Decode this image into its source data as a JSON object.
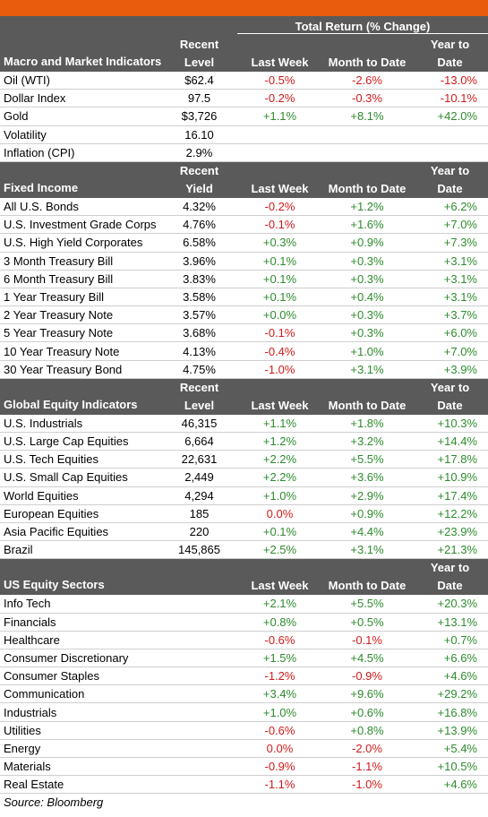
{
  "header": {
    "total_return_label": "Total Return (% Change)"
  },
  "col_labels": {
    "last_week": "Last Week",
    "mtd": "Month to Date",
    "ytd_top": "Year to",
    "ytd_bottom": "Date"
  },
  "sections": [
    {
      "title": "Macro and Market Indicators",
      "level_top": "Recent",
      "level_bottom": "Level",
      "rows": [
        {
          "name": "Oil (WTI)",
          "level": "$62.4",
          "lw": "-0.5%",
          "mtd": "-2.6%",
          "ytd": "-13.0%"
        },
        {
          "name": "Dollar Index",
          "level": "97.5",
          "lw": "-0.2%",
          "mtd": "-0.3%",
          "ytd": "-10.1%"
        },
        {
          "name": "Gold",
          "level": "$3,726",
          "lw": "+1.1%",
          "mtd": "+8.1%",
          "ytd": "+42.0%"
        },
        {
          "name": "Volatility",
          "level": "16.10",
          "lw": "",
          "mtd": "",
          "ytd": ""
        },
        {
          "name": "Inflation (CPI)",
          "level": "2.9%",
          "lw": "",
          "mtd": "",
          "ytd": ""
        }
      ]
    },
    {
      "title": "Fixed Income",
      "level_top": "Recent",
      "level_bottom": "Yield",
      "rows": [
        {
          "name": "All U.S. Bonds",
          "level": "4.32%",
          "lw": "-0.2%",
          "mtd": "+1.2%",
          "ytd": "+6.2%"
        },
        {
          "name": "U.S. Investment Grade Corps",
          "level": "4.76%",
          "lw": "-0.1%",
          "mtd": "+1.6%",
          "ytd": "+7.0%"
        },
        {
          "name": "U.S. High Yield Corporates",
          "level": "6.58%",
          "lw": "+0.3%",
          "mtd": "+0.9%",
          "ytd": "+7.3%"
        },
        {
          "name": "3 Month Treasury Bill",
          "level": "3.96%",
          "lw": "+0.1%",
          "mtd": "+0.3%",
          "ytd": "+3.1%"
        },
        {
          "name": "6 Month Treasury Bill",
          "level": "3.83%",
          "lw": "+0.1%",
          "mtd": "+0.3%",
          "ytd": "+3.1%"
        },
        {
          "name": "1 Year Treasury Bill",
          "level": "3.58%",
          "lw": "+0.1%",
          "mtd": "+0.4%",
          "ytd": "+3.1%"
        },
        {
          "name": "2 Year Treasury Note",
          "level": "3.57%",
          "lw": "+0.0%",
          "mtd": "+0.3%",
          "ytd": "+3.7%"
        },
        {
          "name": "5 Year Treasury Note",
          "level": "3.68%",
          "lw": "-0.1%",
          "mtd": "+0.3%",
          "ytd": "+6.0%"
        },
        {
          "name": "10 Year Treasury Note",
          "level": "4.13%",
          "lw": "-0.4%",
          "mtd": "+1.0%",
          "ytd": "+7.0%"
        },
        {
          "name": "30 Year Treasury Bond",
          "level": "4.75%",
          "lw": "-1.0%",
          "mtd": "+3.1%",
          "ytd": "+3.9%"
        }
      ]
    },
    {
      "title": "Global Equity Indicators",
      "level_top": "Recent",
      "level_bottom": "Level",
      "rows": [
        {
          "name": "U.S. Industrials",
          "level": "46,315",
          "lw": "+1.1%",
          "mtd": "+1.8%",
          "ytd": "+10.3%"
        },
        {
          "name": "U.S. Large Cap Equities",
          "level": "6,664",
          "lw": "+1.2%",
          "mtd": "+3.2%",
          "ytd": "+14.4%"
        },
        {
          "name": "U.S. Tech Equities",
          "level": "22,631",
          "lw": "+2.2%",
          "mtd": "+5.5%",
          "ytd": "+17.8%"
        },
        {
          "name": "U.S. Small Cap Equities",
          "level": "2,449",
          "lw": "+2.2%",
          "mtd": "+3.6%",
          "ytd": "+10.9%"
        },
        {
          "name": "World Equities",
          "level": "4,294",
          "lw": "+1.0%",
          "mtd": "+2.9%",
          "ytd": "+17.4%"
        },
        {
          "name": "European Equities",
          "level": "185",
          "lw": "0.0%",
          "mtd": "+0.9%",
          "ytd": "+12.2%"
        },
        {
          "name": "Asia Pacific Equities",
          "level": "220",
          "lw": "+0.1%",
          "mtd": "+4.4%",
          "ytd": "+23.9%"
        },
        {
          "name": "Brazil",
          "level": "145,865",
          "lw": "+2.5%",
          "mtd": "+3.1%",
          "ytd": "+21.3%"
        }
      ]
    },
    {
      "title": "US Equity Sectors",
      "level_top": "",
      "level_bottom": "",
      "rows": [
        {
          "name": "Info Tech",
          "level": "",
          "lw": "+2.1%",
          "mtd": "+5.5%",
          "ytd": "+20.3%"
        },
        {
          "name": "Financials",
          "level": "",
          "lw": "+0.8%",
          "mtd": "+0.5%",
          "ytd": "+13.1%"
        },
        {
          "name": "Healthcare",
          "level": "",
          "lw": "-0.6%",
          "mtd": "-0.1%",
          "ytd": "+0.7%"
        },
        {
          "name": "Consumer Discretionary",
          "level": "",
          "lw": "+1.5%",
          "mtd": "+4.5%",
          "ytd": "+6.6%"
        },
        {
          "name": "Consumer Staples",
          "level": "",
          "lw": "-1.2%",
          "mtd": "-0.9%",
          "ytd": "+4.6%"
        },
        {
          "name": "Communication",
          "level": "",
          "lw": "+3.4%",
          "mtd": "+9.6%",
          "ytd": "+29.2%"
        },
        {
          "name": "Industrials",
          "level": "",
          "lw": "+1.0%",
          "mtd": "+0.6%",
          "ytd": "+16.8%"
        },
        {
          "name": "Utilities",
          "level": "",
          "lw": "-0.6%",
          "mtd": "+0.8%",
          "ytd": "+13.9%"
        },
        {
          "name": "Energy",
          "level": "",
          "lw": "0.0%",
          "mtd": "-2.0%",
          "ytd": "+5.4%"
        },
        {
          "name": "Materials",
          "level": "",
          "lw": "-0.9%",
          "mtd": "-1.1%",
          "ytd": "+10.5%"
        },
        {
          "name": "Real Estate",
          "level": "",
          "lw": "-1.1%",
          "mtd": "-1.0%",
          "ytd": "+4.6%"
        }
      ]
    }
  ],
  "footer": {
    "source": "Source: Bloomberg"
  },
  "colors": {
    "positive": "#2e8b2e",
    "negative": "#d11a1a",
    "header_bg": "#5a5a5a",
    "accent": "#e85c0d"
  }
}
